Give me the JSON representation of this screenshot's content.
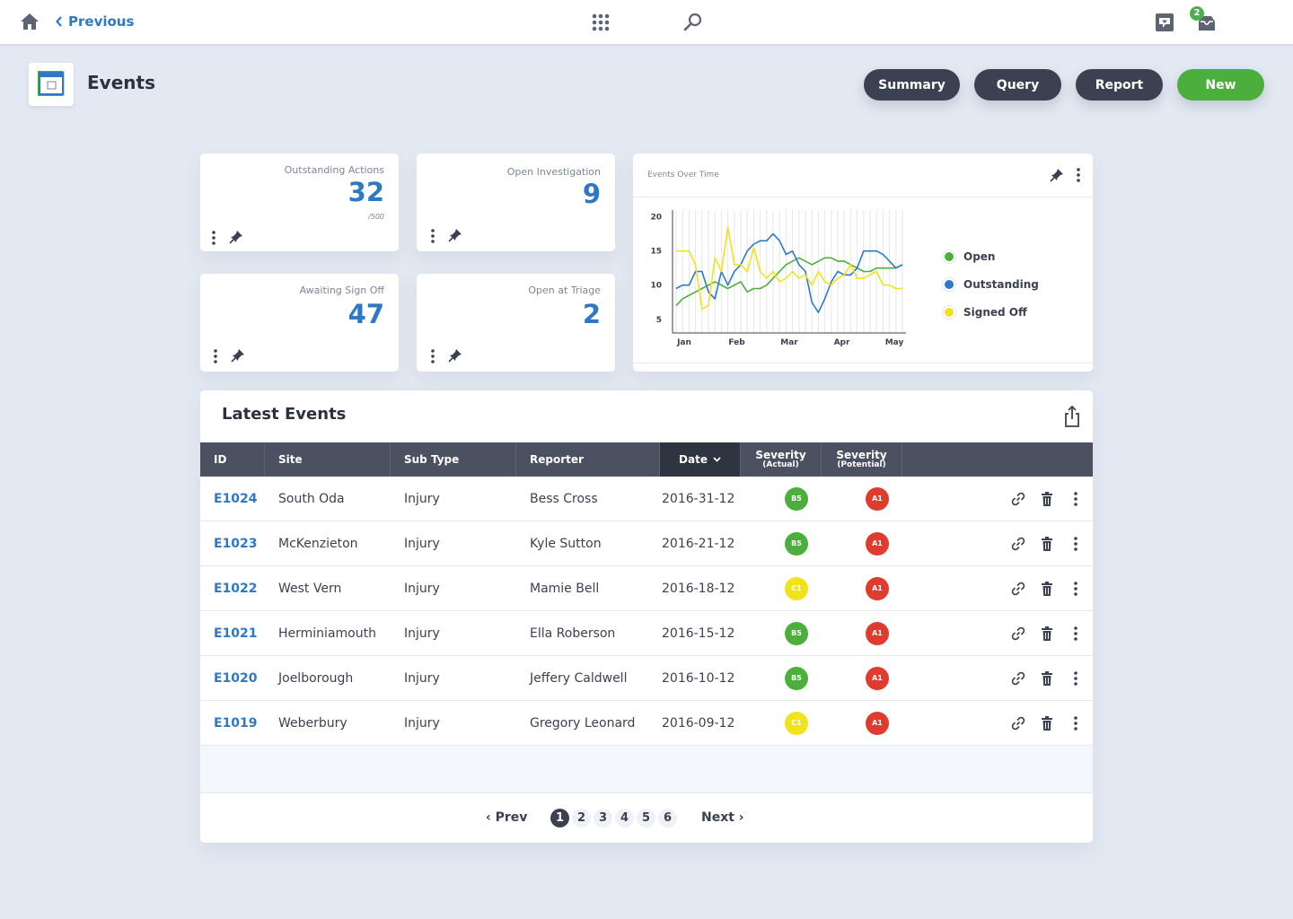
{
  "topbar": {
    "previous_label": "Previous",
    "notification_count": "2",
    "icons": [
      "home-icon",
      "apps-grid-icon",
      "search-icon",
      "message-icon",
      "inbox-icon"
    ]
  },
  "page": {
    "title": "Events",
    "buttons": {
      "summary": "Summary",
      "query": "Query",
      "report": "Report",
      "new": "New"
    }
  },
  "colors": {
    "accent": "#2f78c4",
    "dark": "#3b4150",
    "success": "#4caf3c",
    "sev_green": "#4caf3c",
    "sev_yellow": "#f2e21b",
    "sev_red": "#e03b2f"
  },
  "stats": [
    {
      "label": "Outstanding Actions",
      "value": "32",
      "sub": "/500"
    },
    {
      "label": "Open Investigation",
      "value": "9"
    },
    {
      "label": "Awaiting Sign Off",
      "value": "47"
    },
    {
      "label": "Open at Triage",
      "value": "2"
    }
  ],
  "chart_data": {
    "type": "line",
    "title": "Events Over Time",
    "x_ticks": [
      "Jan",
      "Feb",
      "Mar",
      "Apr",
      "May"
    ],
    "y_ticks": [
      5,
      10,
      15,
      20
    ],
    "ylim": [
      3,
      21
    ],
    "grid": "vertical lines",
    "legend": "right",
    "series": [
      {
        "name": "Open",
        "color": "#4caf3c",
        "values": [
          7,
          8,
          8.5,
          9,
          9.5,
          10,
          10.5,
          10,
          9.5,
          10,
          10.5,
          9,
          9.5,
          9.5,
          10,
          11,
          12,
          13,
          13.5,
          14,
          13.5,
          13,
          13.5,
          14,
          14,
          13.5,
          13.5,
          13,
          12.5,
          12,
          12,
          12.5,
          12.5,
          12.5,
          12.5,
          13
        ]
      },
      {
        "name": "Outstanding",
        "color": "#2f78c4",
        "values": [
          9.5,
          10,
          10,
          12,
          12,
          9,
          8,
          12,
          10,
          12,
          13,
          15,
          16,
          16.5,
          16.5,
          17.5,
          16.5,
          14.5,
          15,
          13,
          12,
          7.5,
          6,
          8,
          10.5,
          12,
          11.5,
          11.5,
          12.5,
          15,
          15,
          15,
          14.5,
          13.5,
          12.5,
          13
        ]
      },
      {
        "name": "Signed Off",
        "color": "#f2e21b",
        "values": [
          15,
          15,
          15,
          13,
          6.5,
          7,
          14,
          12,
          18.5,
          13,
          13,
          12,
          15.5,
          12,
          11,
          12,
          10.5,
          11,
          12,
          11,
          11.5,
          10,
          12,
          10.5,
          10,
          11,
          11.5,
          13,
          11,
          11,
          11.5,
          12,
          10,
          10,
          9.5,
          9.5
        ]
      }
    ]
  },
  "table": {
    "title": "Latest Events",
    "columns": {
      "id": "ID",
      "site": "Site",
      "sub_type": "Sub Type",
      "reporter": "Reporter",
      "date": "Date",
      "sev_actual": "Severity",
      "sev_actual_sub": "(Actual)",
      "sev_potential": "Severity",
      "sev_potential_sub": "(Potential)"
    },
    "rows": [
      {
        "id": "E1024",
        "site": "South Oda",
        "sub_type": "Injury",
        "reporter": "Bess Cross",
        "date": "2016-31-12",
        "sev_actual": "B5",
        "sev_actual_color": "#4caf3c",
        "sev_potential": "A1",
        "sev_potential_color": "#e03b2f"
      },
      {
        "id": "E1023",
        "site": "McKenzieton",
        "sub_type": "Injury",
        "reporter": "Kyle Sutton",
        "date": "2016-21-12",
        "sev_actual": "B5",
        "sev_actual_color": "#4caf3c",
        "sev_potential": "A1",
        "sev_potential_color": "#e03b2f"
      },
      {
        "id": "E1022",
        "site": "West Vern",
        "sub_type": "Injury",
        "reporter": "Mamie Bell",
        "date": "2016-18-12",
        "sev_actual": "C1",
        "sev_actual_color": "#f2e21b",
        "sev_potential": "A1",
        "sev_potential_color": "#e03b2f"
      },
      {
        "id": "E1021",
        "site": "Herminiamouth",
        "sub_type": "Injury",
        "reporter": "Ella Roberson",
        "date": "2016-15-12",
        "sev_actual": "B5",
        "sev_actual_color": "#4caf3c",
        "sev_potential": "A1",
        "sev_potential_color": "#e03b2f"
      },
      {
        "id": "E1020",
        "site": "Joelborough",
        "sub_type": "Injury",
        "reporter": "Jeffery Caldwell",
        "date": "2016-10-12",
        "sev_actual": "B5",
        "sev_actual_color": "#4caf3c",
        "sev_potential": "A1",
        "sev_potential_color": "#e03b2f"
      },
      {
        "id": "E1019",
        "site": "Weberbury",
        "sub_type": "Injury",
        "reporter": "Gregory Leonard",
        "date": "2016-09-12",
        "sev_actual": "C1",
        "sev_actual_color": "#f2e21b",
        "sev_potential": "A1",
        "sev_potential_color": "#e03b2f"
      }
    ],
    "row_action_icons": [
      "link-icon",
      "trash-icon",
      "more-icon"
    ]
  },
  "pagination": {
    "prev_label": "‹ Prev",
    "next_label": "Next ›",
    "pages": [
      "1",
      "2",
      "3",
      "4",
      "5",
      "6"
    ],
    "current": "1"
  }
}
